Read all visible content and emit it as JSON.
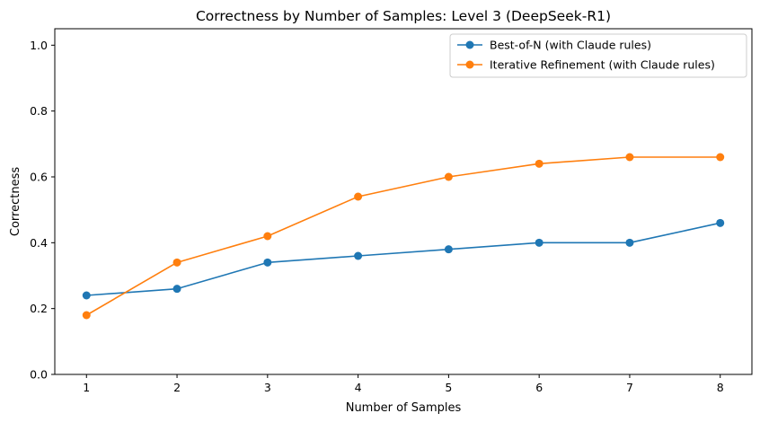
{
  "chart_data": {
    "type": "line",
    "title": "Correctness by Number of Samples: Level 3 (DeepSeek-R1)",
    "xlabel": "Number of Samples",
    "ylabel": "Correctness",
    "x": [
      1,
      2,
      3,
      4,
      5,
      6,
      7,
      8
    ],
    "xlim": [
      0.65,
      8.35
    ],
    "ylim": [
      0.0,
      1.05
    ],
    "x_ticks": [
      "1",
      "2",
      "3",
      "4",
      "5",
      "6",
      "7",
      "8"
    ],
    "y_ticks": [
      0.0,
      0.2,
      0.4,
      0.6,
      0.8,
      1.0
    ],
    "y_tick_labels": [
      "0.0",
      "0.2",
      "0.4",
      "0.6",
      "0.8",
      "1.0"
    ],
    "grid": false,
    "legend_position": "top-right",
    "series": [
      {
        "name": "Best-of-N (with Claude rules)",
        "color": "#1f77b4",
        "marker": "circle",
        "values": [
          0.24,
          0.26,
          0.34,
          0.36,
          0.38,
          0.4,
          0.4,
          0.46
        ]
      },
      {
        "name": "Iterative Refinement (with Claude rules)",
        "color": "#ff7f0e",
        "marker": "circle",
        "values": [
          0.18,
          0.34,
          0.42,
          0.54,
          0.6,
          0.64,
          0.66,
          0.66
        ]
      }
    ]
  }
}
